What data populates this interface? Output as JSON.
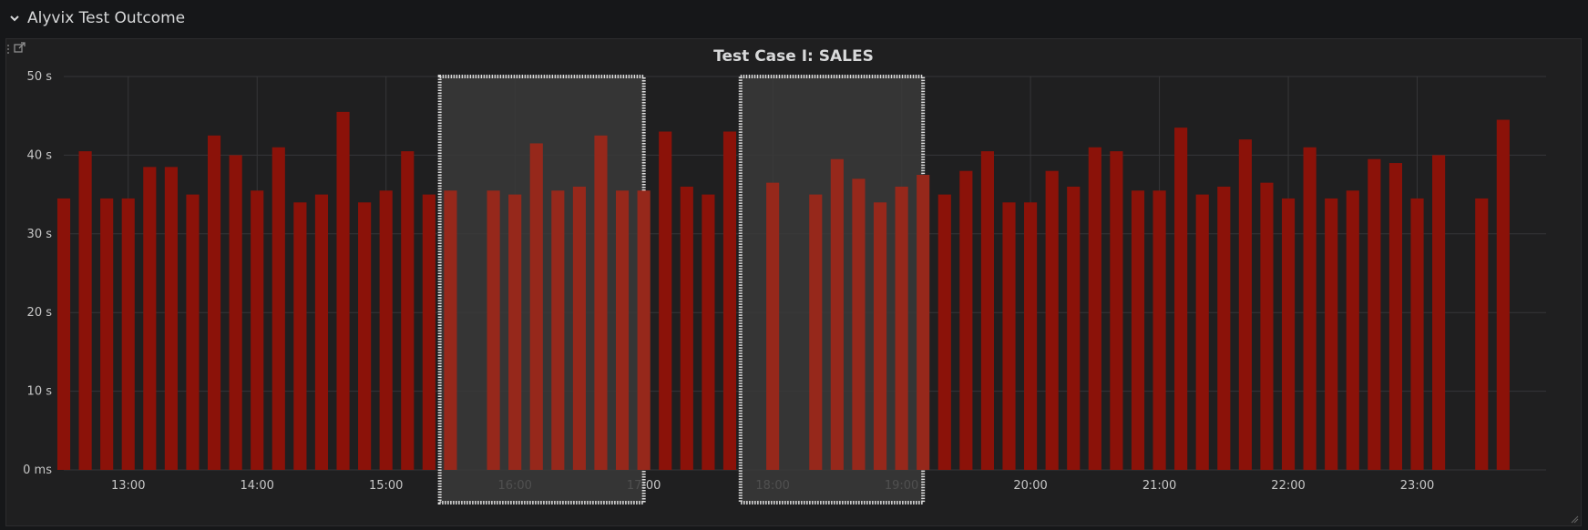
{
  "row": {
    "title": "Alyvix Test Outcome",
    "icon": "chevron-down-icon"
  },
  "panel": {
    "title": "Test Case I: SALES",
    "icons": [
      "external-link-icon",
      "drag-handle-icon",
      "resize-handle-icon"
    ]
  },
  "colors": {
    "bar": "#8b1209",
    "bar_highlight": "#96281b",
    "grid": "#363638",
    "selection_fill": "#3a3a3a",
    "selection_border": "#dcdcdc"
  },
  "chart_data": {
    "type": "bar",
    "title": "Test Case I: SALES",
    "xlabel": "",
    "ylabel": "",
    "ylim": [
      0,
      50
    ],
    "yticks": [
      0,
      10,
      20,
      30,
      40,
      50
    ],
    "ytick_labels": [
      "0 ms",
      "10 s",
      "20 s",
      "30 s",
      "40 s",
      "50 s"
    ],
    "xlim_hours": [
      12.5,
      24.0
    ],
    "xticks": [
      13,
      14,
      15,
      16,
      17,
      18,
      19,
      20,
      21,
      22,
      23
    ],
    "xtick_labels": [
      "13:00",
      "14:00",
      "15:00",
      "16:00",
      "17:00",
      "18:00",
      "19:00",
      "20:00",
      "21:00",
      "22:00",
      "23:00"
    ],
    "grid": true,
    "bar_interval_minutes": 10,
    "x_start": "12:30",
    "values": [
      34.5,
      40.5,
      34.5,
      34.5,
      38.5,
      38.5,
      35,
      42.5,
      40,
      35.5,
      41,
      34,
      35,
      45.5,
      34,
      35.5,
      40.5,
      35,
      35.5,
      null,
      35.5,
      35,
      41.5,
      35.5,
      36,
      42.5,
      35.5,
      35.5,
      43,
      36,
      35,
      43,
      null,
      36.5,
      null,
      35,
      39.5,
      37,
      34,
      36,
      37.5,
      35,
      38,
      40.5,
      34,
      34,
      38,
      36,
      41,
      40.5,
      35.5,
      35.5,
      43.5,
      35,
      36,
      42,
      36.5,
      34.5,
      41,
      34.5,
      35.5,
      39.5,
      39,
      34.5,
      40,
      null,
      34.5,
      44.5
    ],
    "selections": [
      {
        "from": "15:25",
        "to": "17:00"
      },
      {
        "from": "17:45",
        "to": "19:10"
      }
    ]
  }
}
